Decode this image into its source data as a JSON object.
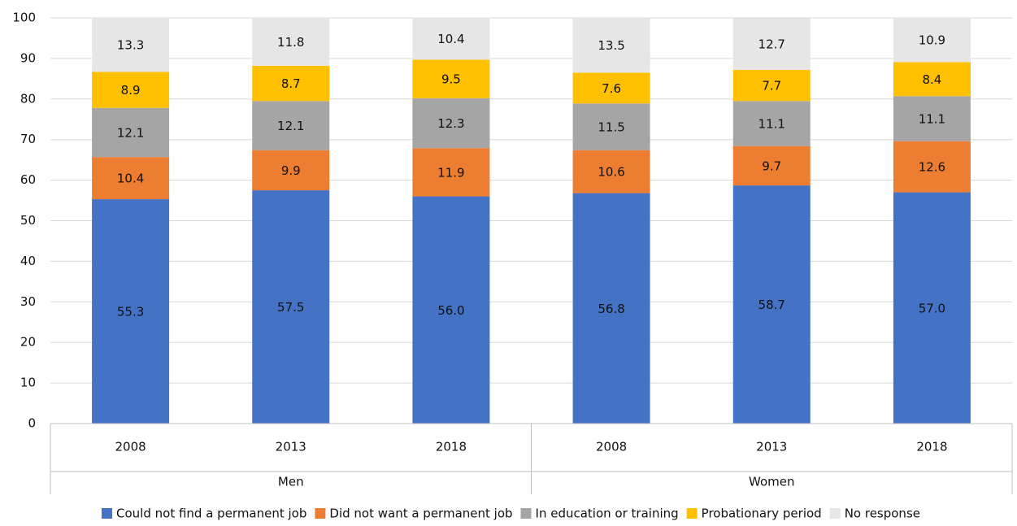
{
  "chart_data": {
    "type": "stacked_bar",
    "categories": [
      "2008",
      "2013",
      "2018",
      "2008",
      "2013",
      "2018"
    ],
    "category_groups": [
      "Men",
      "Men",
      "Men",
      "Women",
      "Women",
      "Women"
    ],
    "series": [
      {
        "name": "Could not find a permanent job",
        "color": "#4472c4",
        "values": [
          55.3,
          57.5,
          56.0,
          56.8,
          58.7,
          57.0
        ],
        "value_labels": [
          "55.3",
          "57.5",
          "56.0",
          "56.8",
          "58.7",
          "57.0"
        ]
      },
      {
        "name": "Did not want a permanent job",
        "color": "#ed7d31",
        "values": [
          10.4,
          9.9,
          11.9,
          10.6,
          9.7,
          12.6
        ]
      },
      {
        "name": "In education or training",
        "color": "#a5a5a5",
        "values": [
          12.1,
          12.1,
          12.3,
          11.5,
          11.1,
          11.1
        ]
      },
      {
        "name": "Probationary period",
        "color": "#ffc000",
        "values": [
          8.9,
          8.7,
          9.5,
          7.6,
          7.7,
          8.4
        ]
      },
      {
        "name": "No response",
        "color": "#e7e6e6",
        "values": [
          13.3,
          11.8,
          10.4,
          13.5,
          12.7,
          10.9
        ]
      }
    ],
    "ylim": [
      0,
      100
    ],
    "yticks": [
      0,
      10,
      20,
      30,
      40,
      50,
      60,
      70,
      80,
      90,
      100
    ],
    "grid": true,
    "legend": "bottom"
  }
}
